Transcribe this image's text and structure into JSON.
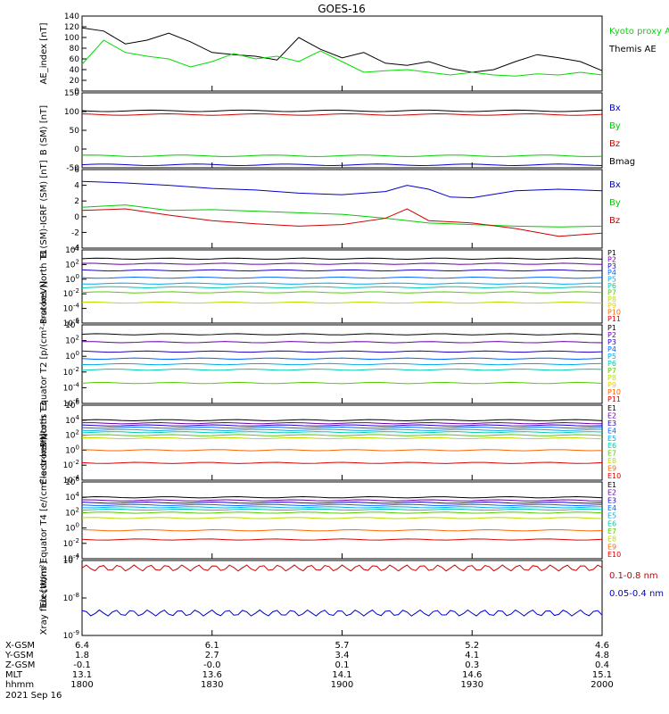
{
  "title": "GOES-16",
  "time_axis": {
    "start": "1800",
    "end": "2000",
    "ticks": [
      "1800",
      "1830",
      "1900",
      "1930",
      "2000"
    ]
  },
  "bottom_table": {
    "rows": [
      {
        "label": "X-GSM",
        "values": [
          "6.4",
          "6.1",
          "5.7",
          "5.2",
          "4.6"
        ]
      },
      {
        "label": "Y-GSM",
        "values": [
          "1.8",
          "2.7",
          "3.4",
          "4.1",
          "4.8"
        ]
      },
      {
        "label": "Z-GSM",
        "values": [
          "-0.1",
          "-0.0",
          "0.1",
          "0.3",
          "0.4"
        ]
      },
      {
        "label": "MLT",
        "values": [
          "13.1",
          "13.6",
          "14.1",
          "14.6",
          "15.1"
        ]
      },
      {
        "label": "hhmm",
        "values": [
          "1800",
          "1830",
          "1900",
          "1930",
          "2000"
        ]
      }
    ],
    "date": "2021 Sep 16"
  },
  "chart_data": [
    {
      "type": "line",
      "ylabel": "AE_index [nT]",
      "ylim": [
        0,
        140
      ],
      "yticks": [
        "140",
        "120",
        "100",
        "80",
        "60",
        "40",
        "20",
        "0"
      ],
      "series": [
        {
          "name": "Themis AE",
          "color": "#000000",
          "x": [
            0,
            5,
            10,
            15,
            20,
            25,
            30,
            35,
            40,
            45,
            50,
            55,
            60,
            65,
            70,
            75,
            80,
            85,
            90,
            95,
            100,
            105,
            110,
            115,
            120
          ],
          "y": [
            118,
            112,
            88,
            95,
            108,
            92,
            72,
            68,
            65,
            58,
            100,
            78,
            62,
            72,
            52,
            48,
            55,
            42,
            35,
            40,
            55,
            68,
            62,
            55,
            38
          ]
        },
        {
          "name": "Kyoto proxy AE",
          "color": "#00dd00",
          "x": [
            0,
            5,
            10,
            15,
            20,
            25,
            30,
            35,
            40,
            45,
            50,
            55,
            60,
            65,
            70,
            75,
            80,
            85,
            90,
            95,
            100,
            105,
            110,
            115,
            120
          ],
          "y": [
            50,
            95,
            72,
            65,
            60,
            45,
            55,
            70,
            60,
            65,
            55,
            75,
            55,
            35,
            38,
            40,
            35,
            30,
            35,
            30,
            28,
            32,
            30,
            35,
            30
          ]
        }
      ],
      "legend": [
        "Kyoto proxy AE",
        "Themis AE"
      ]
    },
    {
      "type": "line",
      "ylabel": "B (SM) [nT]",
      "ylim": [
        -50,
        150
      ],
      "yticks": [
        "150",
        "100",
        "50",
        "0",
        "-50"
      ],
      "series": [
        {
          "name": "Bx",
          "color": "#0000cc",
          "y_const": -42
        },
        {
          "name": "By",
          "color": "#00cc00",
          "y_const": -18
        },
        {
          "name": "Bz",
          "color": "#cc0000",
          "y_const": 92
        },
        {
          "name": "Bmag",
          "color": "#000000",
          "y_const": 102
        }
      ],
      "legend": [
        "Bx",
        "By",
        "Bz",
        "Bmag"
      ]
    },
    {
      "type": "line",
      "ylabel": "B (SM)-IGRF (SM) [nT]",
      "ylim": [
        -4,
        6
      ],
      "yticks": [
        "6",
        "4",
        "2",
        "0",
        "-2",
        "-4"
      ],
      "series": [
        {
          "name": "Bx",
          "color": "#0000cc",
          "x": [
            0,
            10,
            20,
            30,
            40,
            50,
            60,
            70,
            75,
            80,
            85,
            90,
            100,
            110,
            120
          ],
          "y": [
            4.5,
            4.3,
            4,
            3.6,
            3.4,
            3,
            2.8,
            3.2,
            4,
            3.5,
            2.5,
            2.4,
            3.3,
            3.5,
            3.3
          ]
        },
        {
          "name": "By",
          "color": "#00cc00",
          "x": [
            0,
            10,
            20,
            30,
            40,
            50,
            60,
            70,
            80,
            90,
            100,
            110,
            120
          ],
          "y": [
            1.2,
            1.5,
            0.8,
            0.9,
            0.7,
            0.5,
            0.3,
            -0.2,
            -0.8,
            -1,
            -1.2,
            -1.3,
            -1.2
          ]
        },
        {
          "name": "Bz",
          "color": "#cc0000",
          "x": [
            0,
            10,
            20,
            30,
            40,
            50,
            60,
            70,
            75,
            80,
            90,
            100,
            110,
            120
          ],
          "y": [
            0.8,
            1,
            0.2,
            -0.5,
            -0.9,
            -1.2,
            -1,
            -0.2,
            1,
            -0.5,
            -0.8,
            -1.5,
            -2.5,
            -2.1
          ]
        }
      ],
      "legend": [
        "Bx",
        "By",
        "Bz"
      ]
    },
    {
      "type": "line",
      "ylabel": "Protons North T1",
      "ylim": [
        -6,
        4
      ],
      "log": true,
      "yticks": [
        "10^4",
        "10^2",
        "10^0",
        "10^-2",
        "10^-4",
        "10^-6"
      ],
      "channels": [
        "P1",
        "P2",
        "P3",
        "P4",
        "P5",
        "P6",
        "P7",
        "P8",
        "P9",
        "P10",
        "P11"
      ],
      "channel_colors": [
        "#000000",
        "#6a00a8",
        "#2200cc",
        "#0066ff",
        "#00aaee",
        "#00ccaa",
        "#55cc00",
        "#bbdd00",
        "#eecc00",
        "#ff6600",
        "#dd0000"
      ],
      "levels": [
        2.8,
        2.1,
        1.2,
        0.2,
        -0.6,
        -1.1,
        -1.8,
        -3.2
      ]
    },
    {
      "type": "line",
      "ylabel": "Protons Equator T2 [p/(cm²-s-sr-keV)]",
      "ylim": [
        -6,
        4
      ],
      "log": true,
      "yticks": [
        "10^4",
        "10^2",
        "10^0",
        "10^-2",
        "10^-4",
        "10^-6"
      ],
      "channels": [
        "P1",
        "P2",
        "P3",
        "P4",
        "P5",
        "P6",
        "P7",
        "P8",
        "P9",
        "P10",
        "P11"
      ],
      "channel_colors": [
        "#000000",
        "#6a00a8",
        "#2200cc",
        "#0066ff",
        "#00aaee",
        "#00ccaa",
        "#55cc00",
        "#bbdd00",
        "#eecc00",
        "#ff6600",
        "#dd0000"
      ],
      "levels": [
        2.8,
        1.8,
        0.6,
        -0.3,
        -1,
        -1.7,
        -3.4
      ]
    },
    {
      "type": "line",
      "ylabel": "Electrons North T3",
      "ylim": [
        -4,
        6
      ],
      "log": true,
      "yticks": [
        "10^6",
        "10^4",
        "10^2",
        "10^0",
        "10^-2",
        "10^-4"
      ],
      "channels": [
        "E1",
        "E2",
        "E3",
        "E4",
        "E5",
        "E6",
        "E7",
        "E8",
        "E9",
        "E10"
      ],
      "channel_colors": [
        "#000000",
        "#6a00a8",
        "#2200cc",
        "#0066ff",
        "#00aaee",
        "#00ccaa",
        "#55cc00",
        "#bbdd00",
        "#ff6600",
        "#dd0000"
      ],
      "levels": [
        4,
        3.6,
        3.3,
        3,
        2.7,
        2.4,
        2,
        1.6,
        0,
        -1.7
      ]
    },
    {
      "type": "line",
      "ylabel": "Electrons Equator T4 [e/(cm²-s-sr-keV)]",
      "ylim": [
        -4,
        6
      ],
      "log": true,
      "yticks": [
        "10^6",
        "10^4",
        "10^2",
        "10^0",
        "10^-2",
        "10^-4"
      ],
      "channels": [
        "E1",
        "E2",
        "E3",
        "E4",
        "E5",
        "E6",
        "E7",
        "E8",
        "E9",
        "E10"
      ],
      "channel_colors": [
        "#000000",
        "#6a00a8",
        "#2200cc",
        "#0066ff",
        "#00aaee",
        "#00ccaa",
        "#55cc00",
        "#bbdd00",
        "#ff6600",
        "#dd0000"
      ],
      "levels": [
        4,
        3.6,
        3.3,
        3,
        2.7,
        2.4,
        2,
        1.3,
        -0.3,
        -1.5
      ]
    },
    {
      "type": "line",
      "ylabel": "Xray flux [W/m²]",
      "ylim": [
        -9,
        -7
      ],
      "log": true,
      "yticks": [
        "10^-7",
        "10^-8",
        "10^-9"
      ],
      "series": [
        {
          "name": "0.1-0.8 nm",
          "color": "#cc0000",
          "level": -7.2
        },
        {
          "name": "0.05-0.4 nm",
          "color": "#0000cc",
          "level": -8.4
        }
      ],
      "legend": [
        "0.1-0.8 nm",
        "0.05-0.4 nm"
      ]
    }
  ]
}
